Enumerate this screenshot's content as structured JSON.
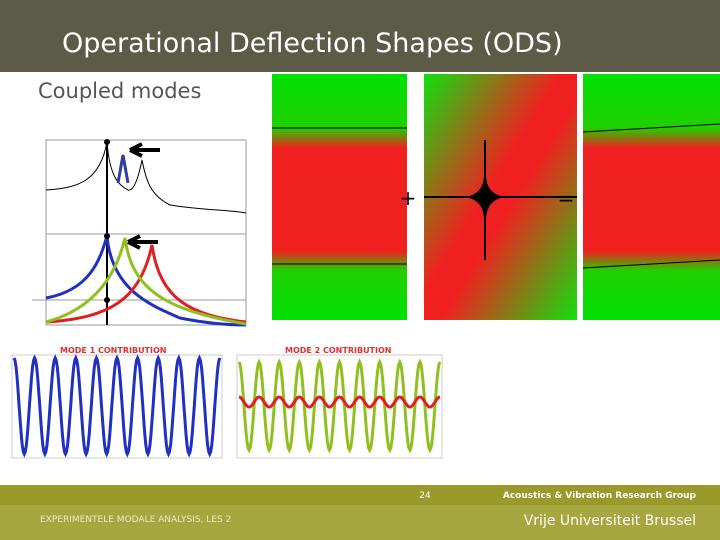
{
  "header": {
    "title": "Operational Deflection Shapes (ODS)",
    "subtitle": "Coupled modes"
  },
  "figure": {
    "plus": "+",
    "equals": "=",
    "mode1": "MODE 1 CONTRIBUTION",
    "mode2": "MODE 2 CONTRIBUTION"
  },
  "footer": {
    "page": "24",
    "group": "Acoustics & Vibration Research Group",
    "course": "EXPERIMENTELE MODALE ANALYSIS, LES 2",
    "university": "Vrije Universiteit Brussel"
  }
}
